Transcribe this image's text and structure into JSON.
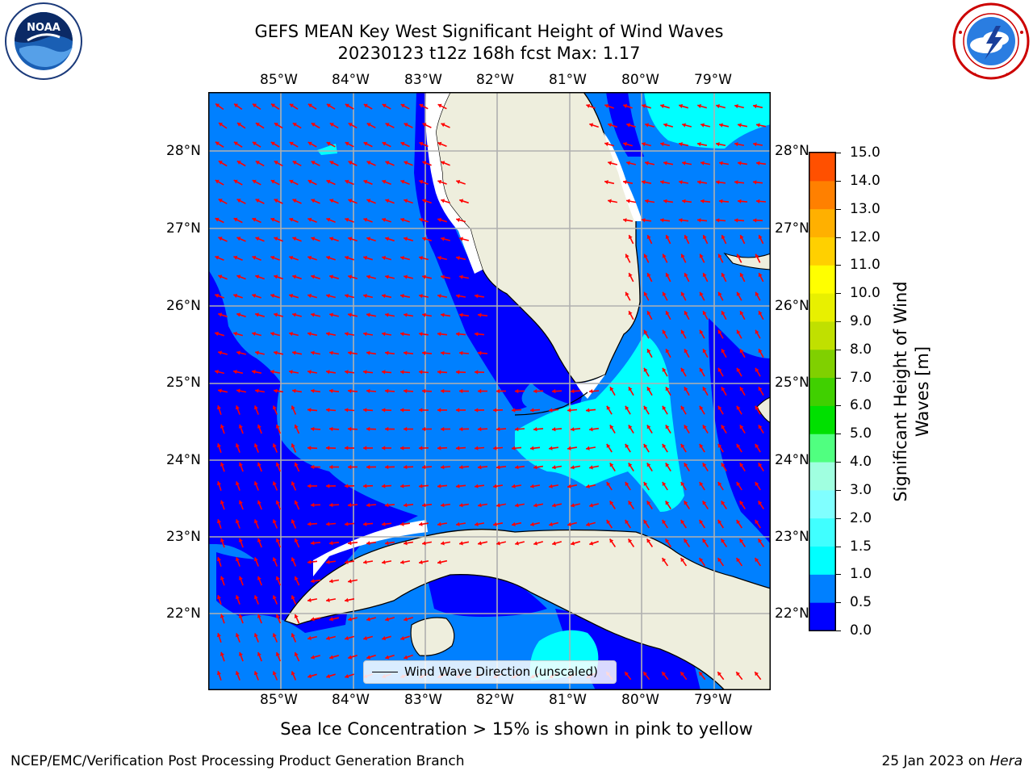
{
  "title": {
    "line1": "GEFS MEAN Key West Significant Height of Wind Waves",
    "line2": "20230123 t12z 168h fcst   Max: 1.17"
  },
  "logos": {
    "left": "NOAA",
    "right": "NATIONAL WEATHER SERVICE"
  },
  "map": {
    "lon_labels": [
      "85°W",
      "84°W",
      "83°W",
      "82°W",
      "81°W",
      "80°W",
      "79°W"
    ],
    "lat_labels": [
      "28°N",
      "27°N",
      "26°N",
      "25°N",
      "24°N",
      "23°N",
      "22°N"
    ],
    "land_color": "#eeeedd",
    "arrow_color": "#ff0000",
    "legend_label": "Wind Wave Direction (unscaled)"
  },
  "colorbar": {
    "label": "Significant Height of Wind Waves [m]",
    "label_line1": "Significant Height of Wind",
    "label_line2": "Waves [m]",
    "ticks": [
      "0.0",
      "0.5",
      "1.0",
      "1.5",
      "2.0",
      "3.0",
      "4.0",
      "5.0",
      "6.0",
      "7.0",
      "8.0",
      "9.0",
      "10.0",
      "11.0",
      "12.0",
      "13.0",
      "14.0",
      "15.0"
    ],
    "colors": [
      "#0000ff",
      "#0080ff",
      "#00ffff",
      "#40ffff",
      "#80ffff",
      "#a0ffe0",
      "#50ff80",
      "#00e000",
      "#40d000",
      "#80d000",
      "#c0e000",
      "#e8f000",
      "#ffff00",
      "#ffd000",
      "#ffb000",
      "#ff8000",
      "#ff5000",
      "#ff2000",
      "#ff0000"
    ]
  },
  "note": "Sea Ice Concentration > 15% is shown in pink to yellow",
  "footer": {
    "left": "NCEP/EMC/Verification Post Processing Product Generation Branch",
    "right_date": "25 Jan 2023 on ",
    "right_host": "Hera"
  }
}
